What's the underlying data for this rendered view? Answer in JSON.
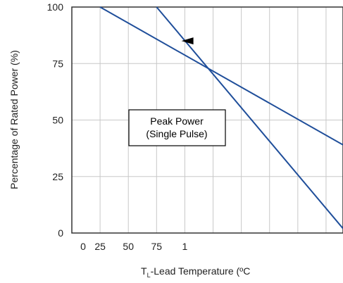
{
  "chart_data": {
    "type": "line",
    "xlabel_main": "T",
    "xlabel_sub": "L",
    "xlabel_rest": "-Lead Temperature (ºC",
    "ylabel": "Percentage of Rated Power (%)",
    "x_ticks": [
      "0",
      "25",
      "50",
      "75",
      "1"
    ],
    "y_ticks": [
      "0",
      "25",
      "50",
      "75",
      "100"
    ],
    "xlim": [
      0,
      240
    ],
    "ylim": [
      0,
      100
    ],
    "grid": true,
    "series": [
      {
        "x": [
          25,
          240
        ],
        "y": [
          100,
          39
        ],
        "color": "#1f4e9a"
      },
      {
        "x": [
          75,
          240
        ],
        "y": [
          100,
          2
        ],
        "color": "#1f4e9a"
      }
    ],
    "annotation_box": {
      "line1": "Peak Power",
      "line2": "(Single Pulse)"
    },
    "arrow": {
      "x": 97,
      "y": 85,
      "direction": "left"
    }
  }
}
